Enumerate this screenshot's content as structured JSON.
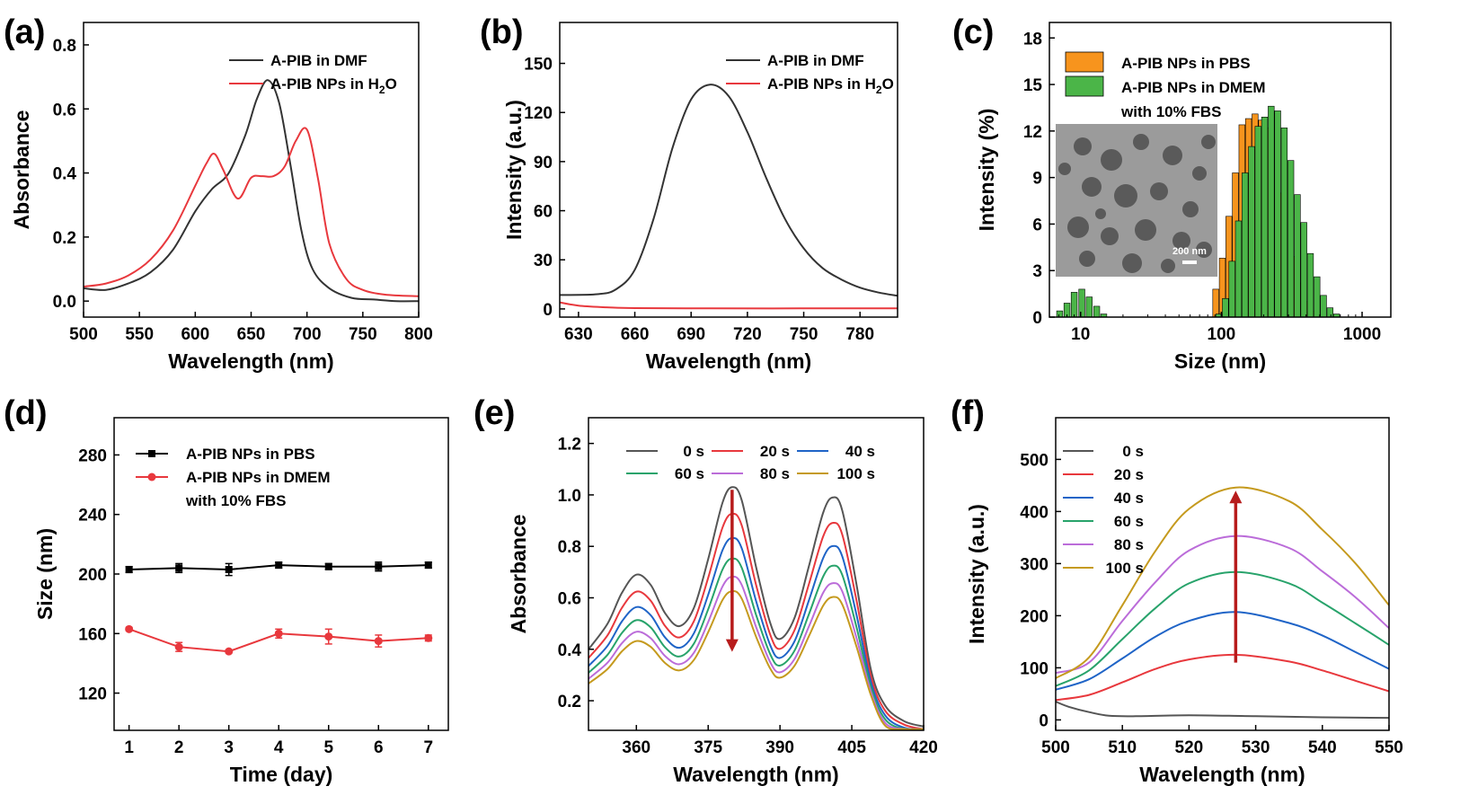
{
  "chart_data": [
    {
      "panel": "(a)",
      "type": "line",
      "xlabel": "Wavelength (nm)",
      "ylabel": "Absorbance",
      "xlim": [
        500,
        800
      ],
      "ylim": [
        -0.05,
        0.87
      ],
      "xticks": [
        500,
        550,
        600,
        650,
        700,
        750,
        800
      ],
      "yticks": [
        0.0,
        0.2,
        0.4,
        0.6,
        0.8
      ],
      "ytick_decimals": 1,
      "legend": "top-right",
      "series": [
        {
          "name": "A-PIB in DMF",
          "color": "#333333",
          "x": [
            500,
            520,
            540,
            560,
            580,
            600,
            615,
            630,
            645,
            655,
            665,
            675,
            685,
            695,
            705,
            720,
            740,
            760,
            780,
            800
          ],
          "y": [
            0.04,
            0.035,
            0.055,
            0.09,
            0.16,
            0.28,
            0.35,
            0.4,
            0.52,
            0.63,
            0.69,
            0.62,
            0.43,
            0.22,
            0.1,
            0.04,
            0.01,
            0.005,
            0.0,
            0.0
          ]
        },
        {
          "name": "A-PIB NPs in H",
          "name_sub": "2",
          "name_tail": "O",
          "color": "#e8383d",
          "x": [
            500,
            520,
            540,
            560,
            580,
            600,
            610,
            617,
            625,
            638,
            650,
            660,
            670,
            680,
            690,
            700,
            710,
            720,
            735,
            750,
            770,
            800
          ],
          "y": [
            0.045,
            0.055,
            0.08,
            0.13,
            0.22,
            0.36,
            0.43,
            0.46,
            0.41,
            0.32,
            0.385,
            0.39,
            0.39,
            0.42,
            0.5,
            0.535,
            0.38,
            0.18,
            0.07,
            0.035,
            0.02,
            0.015
          ]
        }
      ]
    },
    {
      "panel": "(b)",
      "type": "line",
      "xlabel": "Wavelength (nm)",
      "ylabel": "Intensity (a.u.)",
      "xlim": [
        620,
        800
      ],
      "ylim": [
        -5,
        175
      ],
      "xticks": [
        630,
        660,
        690,
        720,
        750,
        780
      ],
      "yticks": [
        0,
        30,
        60,
        90,
        120,
        150
      ],
      "ytick_decimals": 0,
      "legend": "top-right",
      "series": [
        {
          "name": "A-PIB in DMF",
          "color": "#333333",
          "x": [
            620,
            640,
            650,
            660,
            670,
            680,
            690,
            700,
            710,
            720,
            730,
            740,
            750,
            760,
            770,
            780,
            790,
            800
          ],
          "y": [
            8.5,
            9,
            12,
            24,
            55,
            98,
            128,
            137,
            130,
            108,
            80,
            55,
            37,
            25,
            18,
            13,
            10,
            8
          ]
        },
        {
          "name": "A-PIB NPs in H",
          "name_sub": "2",
          "name_tail": "O",
          "color": "#e8383d",
          "x": [
            620,
            630,
            645,
            660,
            700,
            750,
            800
          ],
          "y": [
            4,
            2,
            1,
            0.5,
            0.3,
            0.3,
            0.3
          ]
        }
      ]
    },
    {
      "panel": "(c)",
      "type": "bar",
      "scale": "log-x",
      "xlabel": "Size (nm)",
      "ylabel": "Intensity (%)",
      "xlim": [
        6,
        1600
      ],
      "ylim": [
        0,
        19
      ],
      "xticks": [
        10,
        100,
        1000
      ],
      "yticks": [
        0,
        3,
        6,
        9,
        12,
        15,
        18
      ],
      "ytick_decimals": 0,
      "legend": "top-left",
      "inset_scale_bar": "200 nm",
      "series": [
        {
          "name": "A-PIB NPs in PBS",
          "color": "#f7941d",
          "x": [
            91.3,
            101.6,
            113.1,
            125.8,
            140.1,
            155.9,
            173.5,
            193.1,
            214.9,
            239.1,
            266.1,
            296.2,
            329.6,
            366.8,
            408.2,
            454.3,
            505.6
          ],
          "y": [
            1.8,
            3.8,
            6.5,
            9.3,
            12.4,
            12.8,
            13.1,
            12.7,
            12.2,
            10.2,
            8.0,
            5.6,
            3.9,
            2.2,
            1.0,
            0.4,
            0.15
          ]
        },
        {
          "name": "A-PIB NPs in DMEM",
          "name_line2": "with 10% FBS",
          "color": "#4bb548",
          "x": [
            7.1,
            8.0,
            9.0,
            10.2,
            11.5,
            13.0,
            14.6,
            96.0,
            106.8,
            118.9,
            132.3,
            147.3,
            163.9,
            182.4,
            203.0,
            225.9,
            251.4,
            279.8,
            311.4,
            346.6,
            385.7,
            429.3,
            477.7,
            531.7,
            591.8,
            658.6
          ],
          "y": [
            0.4,
            0.9,
            1.6,
            1.8,
            1.3,
            0.7,
            0.2,
            0.2,
            1.2,
            3.6,
            6.2,
            9.3,
            11.0,
            12.3,
            12.9,
            13.6,
            13.3,
            12.2,
            10.1,
            7.9,
            6.1,
            4.1,
            2.6,
            1.4,
            0.6,
            0.2
          ]
        }
      ]
    },
    {
      "panel": "(d)",
      "type": "line",
      "xlabel": "Time (day)",
      "ylabel": "Size (nm)",
      "xlim": [
        0.7,
        7.4
      ],
      "ylim": [
        95,
        305
      ],
      "xticks": [
        1,
        2,
        3,
        4,
        5,
        6,
        7
      ],
      "yticks": [
        120,
        160,
        200,
        240,
        280
      ],
      "ytick_decimals": 0,
      "legend": "top-left",
      "series": [
        {
          "name": "A-PIB NPs in PBS",
          "color": "#000000",
          "marker": "square",
          "x": [
            1,
            2,
            3,
            4,
            5,
            6,
            7
          ],
          "y": [
            203,
            204,
            203,
            206,
            205,
            205,
            206
          ],
          "err": [
            2,
            3,
            4,
            2,
            2,
            3,
            2
          ]
        },
        {
          "name": "A-PIB NPs in DMEM",
          "name_line2": "with 10% FBS",
          "color": "#e8383d",
          "marker": "circle",
          "x": [
            1,
            2,
            3,
            4,
            5,
            6,
            7
          ],
          "y": [
            163,
            151,
            148,
            160,
            158,
            155,
            157
          ],
          "err": [
            1,
            3,
            1,
            3,
            5,
            4,
            2
          ]
        }
      ]
    },
    {
      "panel": "(e)",
      "type": "line",
      "xlabel": "Wavelength (nm)",
      "ylabel": "Absorbance",
      "xlim": [
        350,
        420
      ],
      "ylim": [
        0.085,
        1.3
      ],
      "xticks": [
        360,
        375,
        390,
        405,
        420
      ],
      "yticks": [
        0.2,
        0.4,
        0.6,
        0.8,
        1.0,
        1.2
      ],
      "ytick_decimals": 1,
      "legend": "top",
      "arrow": "down",
      "x": [
        350,
        354,
        357,
        360,
        363,
        366,
        369,
        372,
        375,
        378,
        380,
        382,
        385,
        388,
        390,
        393,
        396,
        399,
        401,
        403,
        406,
        409,
        412,
        416,
        420
      ],
      "base": [
        0.4,
        0.5,
        0.62,
        0.69,
        0.65,
        0.54,
        0.49,
        0.56,
        0.75,
        0.97,
        1.03,
        0.98,
        0.72,
        0.5,
        0.44,
        0.52,
        0.72,
        0.93,
        0.99,
        0.94,
        0.65,
        0.32,
        0.18,
        0.12,
        0.1
      ],
      "series": [
        {
          "name": "0 s",
          "color": "#555555",
          "scale": 1.0
        },
        {
          "name": "20 s",
          "color": "#e8383d",
          "scale": 0.89
        },
        {
          "name": "40 s",
          "color": "#1f64c7",
          "scale": 0.79
        },
        {
          "name": "60 s",
          "color": "#28a36b",
          "scale": 0.705
        },
        {
          "name": "80 s",
          "color": "#bb6cd9",
          "scale": 0.63
        },
        {
          "name": "100 s",
          "color": "#c59a1e",
          "scale": 0.57
        }
      ]
    },
    {
      "panel": "(f)",
      "type": "line",
      "xlabel": "Wavelength (nm)",
      "ylabel": "Intensity  (a.u.)",
      "xlim": [
        500,
        550
      ],
      "ylim": [
        -20,
        580
      ],
      "xticks": [
        500,
        510,
        520,
        530,
        540,
        550
      ],
      "yticks": [
        0,
        100,
        200,
        300,
        400,
        500
      ],
      "ytick_decimals": 0,
      "legend": "top-left",
      "arrow": "up",
      "series": [
        {
          "name": "0 s",
          "color": "#555555",
          "x": [
            500,
            502,
            505,
            508,
            512,
            520,
            530,
            540,
            550
          ],
          "y": [
            35,
            25,
            15,
            8,
            7,
            9,
            7,
            5,
            4
          ]
        },
        {
          "name": "20 s",
          "color": "#e8383d",
          "x": [
            500,
            505,
            510,
            515,
            520,
            527,
            535,
            540,
            545,
            550
          ],
          "y": [
            38,
            48,
            72,
            98,
            116,
            125,
            112,
            95,
            75,
            55
          ]
        },
        {
          "name": "40 s",
          "color": "#1f64c7",
          "x": [
            500,
            505,
            510,
            515,
            520,
            527,
            535,
            540,
            545,
            550
          ],
          "y": [
            58,
            78,
            118,
            160,
            190,
            207,
            186,
            162,
            130,
            98
          ]
        },
        {
          "name": "60 s",
          "color": "#28a36b",
          "x": [
            500,
            505,
            510,
            515,
            520,
            527,
            535,
            540,
            545,
            550
          ],
          "y": [
            65,
            95,
            155,
            215,
            262,
            284,
            262,
            225,
            185,
            144
          ]
        },
        {
          "name": "80 s",
          "color": "#bb6cd9",
          "x": [
            500,
            505,
            510,
            515,
            520,
            527,
            535,
            540,
            545,
            550
          ],
          "y": [
            90,
            110,
            190,
            265,
            325,
            353,
            330,
            285,
            235,
            176
          ]
        },
        {
          "name": "100 s",
          "color": "#c59a1e",
          "x": [
            500,
            505,
            510,
            515,
            520,
            527,
            535,
            540,
            545,
            550
          ],
          "y": [
            80,
            120,
            220,
            325,
            405,
            446,
            420,
            365,
            300,
            220
          ]
        }
      ]
    }
  ]
}
